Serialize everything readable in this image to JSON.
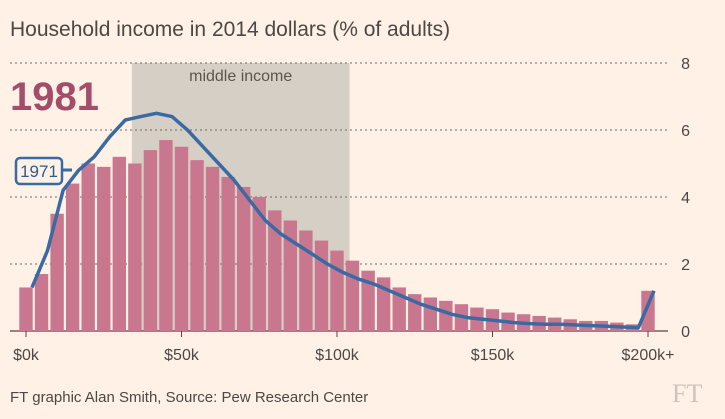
{
  "chart_data": {
    "type": "bar",
    "title": "Household income in 2014 dollars (% of adults)",
    "year_label": "1981",
    "band": {
      "label": "middle income",
      "range": [
        35000,
        105000
      ]
    },
    "source": "FT graphic Alan Smith, Source: Pew Research Center",
    "logo": "FT",
    "ylim": [
      0,
      8
    ],
    "y_ticks": [
      "0",
      "2",
      "4",
      "6",
      "8"
    ],
    "grid": true,
    "x_ticks": [
      {
        "value": 0,
        "label": "$0k"
      },
      {
        "value": 50000,
        "label": "$50k"
      },
      {
        "value": 100000,
        "label": "$100k"
      },
      {
        "value": 150000,
        "label": "$150k"
      },
      {
        "value": 200000,
        "label": "$200k+"
      }
    ],
    "bar_width": 5000,
    "series": [
      {
        "name": "1981",
        "kind": "bar",
        "color": "#c9768f",
        "x": [
          0,
          5000,
          10000,
          15000,
          20000,
          25000,
          30000,
          35000,
          40000,
          45000,
          50000,
          55000,
          60000,
          65000,
          70000,
          75000,
          80000,
          85000,
          90000,
          95000,
          100000,
          105000,
          110000,
          115000,
          120000,
          125000,
          130000,
          135000,
          140000,
          145000,
          150000,
          155000,
          160000,
          165000,
          170000,
          175000,
          180000,
          185000,
          190000,
          195000,
          200000
        ],
        "values": [
          1.3,
          1.7,
          3.5,
          4.4,
          5.0,
          4.9,
          5.2,
          5.0,
          5.4,
          5.7,
          5.5,
          5.1,
          4.9,
          4.6,
          4.3,
          4.0,
          3.6,
          3.3,
          3.0,
          2.7,
          2.4,
          2.1,
          1.8,
          1.6,
          1.3,
          1.1,
          1.0,
          0.9,
          0.8,
          0.7,
          0.65,
          0.55,
          0.5,
          0.45,
          0.4,
          0.35,
          0.3,
          0.3,
          0.25,
          0.2,
          1.2
        ]
      },
      {
        "name": "1971",
        "kind": "line",
        "color": "#3a6aa3",
        "x": [
          0,
          5000,
          10000,
          15000,
          20000,
          25000,
          30000,
          35000,
          40000,
          45000,
          50000,
          55000,
          60000,
          65000,
          70000,
          75000,
          80000,
          85000,
          90000,
          95000,
          100000,
          105000,
          110000,
          115000,
          120000,
          125000,
          130000,
          135000,
          140000,
          145000,
          150000,
          155000,
          160000,
          165000,
          170000,
          175000,
          180000,
          185000,
          190000,
          195000,
          200000
        ],
        "values": [
          1.3,
          2.4,
          4.2,
          4.8,
          5.2,
          5.8,
          6.3,
          6.4,
          6.5,
          6.4,
          6.0,
          5.5,
          5.0,
          4.5,
          3.9,
          3.3,
          2.9,
          2.6,
          2.3,
          2.0,
          1.75,
          1.55,
          1.4,
          1.2,
          1.0,
          0.8,
          0.65,
          0.5,
          0.4,
          0.35,
          0.3,
          0.25,
          0.22,
          0.2,
          0.2,
          0.18,
          0.16,
          0.14,
          0.12,
          0.1,
          1.2
        ]
      }
    ],
    "line_label": "1971"
  }
}
